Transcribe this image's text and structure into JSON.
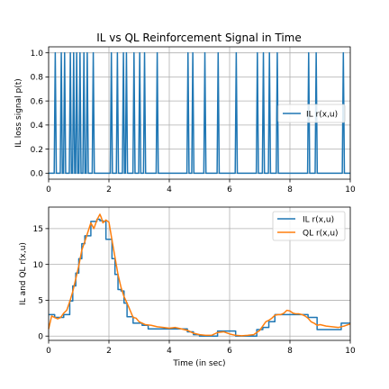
{
  "chart_data": [
    {
      "type": "line",
      "title": "IL vs QL Reinforcement Signal in Time",
      "xlabel": "",
      "ylabel": "IL loss signal p(t)",
      "xlim": [
        0,
        10
      ],
      "ylim": [
        -0.05,
        1.05
      ],
      "xticks": [
        "0",
        "2",
        "4",
        "6",
        "8",
        "10"
      ],
      "yticks": [
        "0.0",
        "0.2",
        "0.4",
        "0.6",
        "0.8",
        "1.0"
      ],
      "legend": {
        "position": "center-right",
        "entries": [
          "IL r(x,u)"
        ]
      },
      "grid": true,
      "series": [
        {
          "name": "IL r(x,u)",
          "color": "#1f77b4",
          "pulses": [
            0.22,
            0.42,
            0.53,
            0.72,
            0.83,
            0.93,
            1.04,
            1.17,
            1.28,
            1.48,
            2.08,
            2.28,
            2.48,
            2.58,
            2.83,
            3.02,
            3.18,
            3.6,
            4.62,
            4.78,
            5.18,
            5.62,
            6.22,
            6.92,
            7.12,
            7.32,
            7.58,
            8.62,
            8.87,
            9.77
          ]
        }
      ]
    },
    {
      "type": "line",
      "title": "",
      "xlabel": "Time (in sec)",
      "ylabel": "IL and QL r(x,u)",
      "xlim": [
        0,
        10
      ],
      "ylim": [
        -0.6,
        18
      ],
      "xticks": [
        "0",
        "2",
        "4",
        "6",
        "8",
        "10"
      ],
      "yticks": [
        "0",
        "5",
        "10",
        "15"
      ],
      "legend": {
        "position": "top-right",
        "entries": [
          "IL r(x,u)",
          "QL r(x,u)"
        ]
      },
      "grid": true,
      "series": [
        {
          "name": "IL r(x,u)",
          "color": "#1f77b4",
          "x": [
            0,
            0.2,
            0.2,
            0.4,
            0.4,
            0.5,
            0.5,
            0.7,
            0.7,
            0.8,
            0.8,
            0.9,
            0.9,
            1.0,
            1.0,
            1.1,
            1.1,
            1.2,
            1.2,
            1.4,
            1.4,
            1.6,
            1.6,
            1.7,
            1.7,
            1.8,
            1.8,
            1.9,
            1.9,
            2.1,
            2.1,
            2.2,
            2.2,
            2.3,
            2.3,
            2.4,
            2.4,
            2.5,
            2.5,
            2.6,
            2.6,
            2.8,
            2.8,
            3.0,
            3.0,
            3.1,
            3.1,
            3.3,
            3.3,
            3.5,
            3.5,
            4.6,
            4.6,
            4.8,
            4.8,
            5.0,
            5.0,
            5.6,
            5.6,
            6.2,
            6.2,
            6.9,
            6.9,
            7.1,
            7.1,
            7.3,
            7.3,
            7.5,
            7.5,
            8.6,
            8.6,
            8.9,
            8.9,
            9.7,
            9.7,
            10.0
          ],
          "y": [
            3.0,
            3.0,
            2.6,
            2.6,
            2.6,
            2.6,
            3.0,
            3.0,
            4.9,
            4.9,
            7.0,
            7.0,
            8.8,
            8.8,
            10.8,
            10.8,
            12.9,
            12.9,
            14.0,
            14.0,
            16.0,
            16.0,
            16.3,
            16.3,
            16.1,
            16.1,
            16.0,
            16.0,
            13.5,
            13.5,
            10.8,
            10.8,
            8.6,
            8.6,
            6.5,
            6.5,
            6.3,
            6.3,
            4.6,
            4.6,
            2.7,
            2.7,
            1.8,
            1.8,
            1.8,
            1.8,
            1.5,
            1.5,
            1.0,
            1.0,
            1.0,
            1.0,
            0.6,
            0.6,
            0.2,
            0.2,
            0.0,
            0.0,
            0.7,
            0.7,
            0.0,
            0.0,
            0.9,
            0.9,
            1.2,
            1.2,
            2.0,
            2.0,
            3.0,
            3.0,
            2.6,
            2.6,
            0.9,
            0.9,
            1.8,
            1.8
          ]
        },
        {
          "name": "QL r(x,u)",
          "color": "#ff7f0e",
          "x": [
            0,
            0.1,
            0.2,
            0.3,
            0.4,
            0.5,
            0.6,
            0.7,
            0.8,
            0.9,
            1.0,
            1.1,
            1.2,
            1.3,
            1.4,
            1.5,
            1.6,
            1.7,
            1.75,
            1.8,
            1.9,
            2.0,
            2.1,
            2.2,
            2.3,
            2.4,
            2.5,
            2.6,
            2.7,
            2.8,
            2.9,
            3.0,
            3.2,
            3.4,
            3.6,
            3.8,
            4.0,
            4.2,
            4.4,
            4.6,
            4.8,
            5.0,
            5.2,
            5.4,
            5.6,
            5.8,
            6.0,
            6.2,
            6.4,
            6.6,
            6.8,
            7.0,
            7.1,
            7.2,
            7.3,
            7.4,
            7.5,
            7.6,
            7.7,
            7.8,
            7.9,
            8.0,
            8.1,
            8.2,
            8.3,
            8.4,
            8.5,
            8.6,
            8.7,
            8.8,
            8.9,
            9.0,
            9.2,
            9.4,
            9.6,
            9.8,
            10.0
          ],
          "y": [
            1.0,
            2.8,
            2.6,
            2.4,
            2.6,
            3.2,
            3.6,
            4.8,
            6.2,
            8.0,
            9.8,
            12.0,
            13.2,
            14.5,
            15.8,
            15.0,
            16.2,
            17.0,
            16.5,
            15.8,
            16.2,
            15.9,
            13.4,
            11.0,
            8.6,
            6.8,
            5.5,
            4.6,
            3.6,
            2.6,
            2.5,
            2.0,
            1.6,
            1.5,
            1.3,
            1.2,
            1.1,
            1.2,
            1.0,
            0.8,
            0.4,
            0.2,
            0.1,
            0.1,
            0.5,
            0.6,
            0.3,
            0.1,
            0.05,
            0.1,
            0.2,
            0.8,
            1.4,
            2.0,
            2.2,
            2.5,
            2.9,
            3.0,
            3.0,
            3.2,
            3.6,
            3.5,
            3.2,
            3.1,
            3.1,
            3.0,
            2.8,
            2.5,
            2.0,
            1.8,
            1.5,
            1.6,
            1.4,
            1.3,
            1.2,
            1.4,
            1.7
          ]
        }
      ]
    }
  ]
}
